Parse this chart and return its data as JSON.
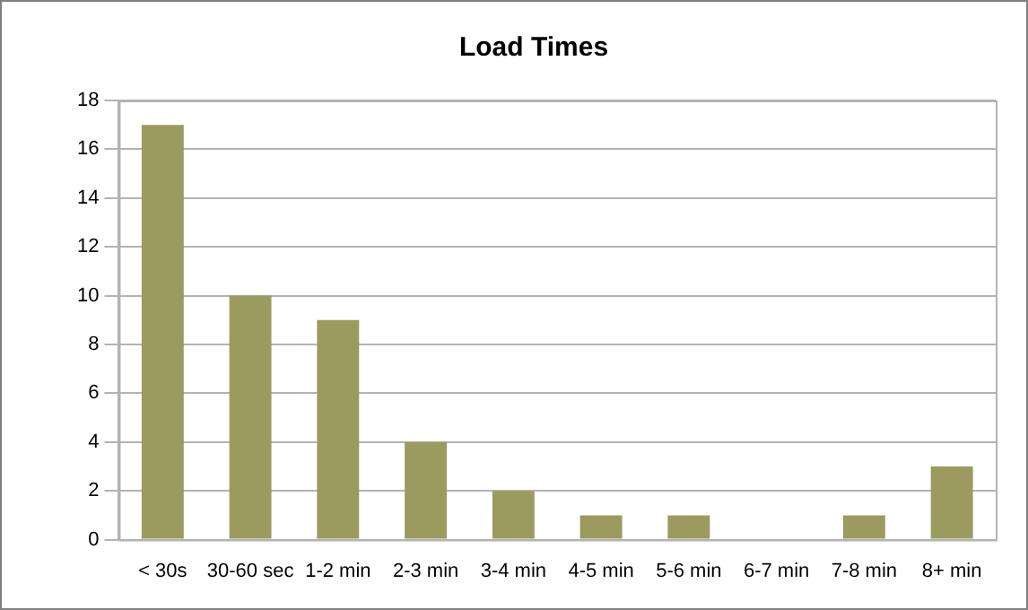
{
  "chart_data": {
    "type": "bar",
    "title": "Load Times",
    "categories": [
      "< 30s",
      "30-60 sec",
      "1-2 min",
      "2-3 min",
      "3-4 min",
      "4-5 min",
      "5-6 min",
      "6-7 min",
      "7-8 min",
      "8+ min"
    ],
    "values": [
      17,
      10,
      9,
      4,
      2,
      1,
      1,
      0,
      1,
      3
    ],
    "color": "#9b9b5f",
    "ylim": [
      0,
      18
    ],
    "yticks": [
      0,
      2,
      4,
      6,
      8,
      10,
      12,
      14,
      16,
      18
    ],
    "grid": "y",
    "legend": false
  }
}
